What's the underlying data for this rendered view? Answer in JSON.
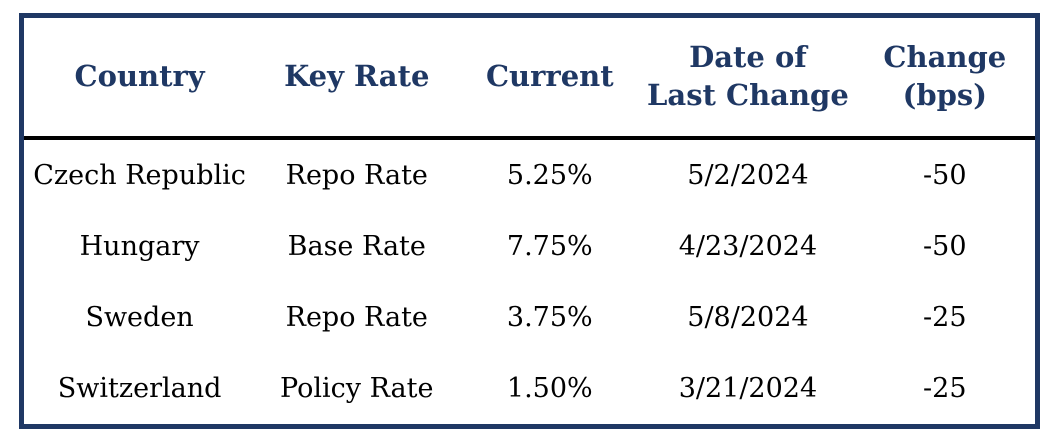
{
  "colors": {
    "table_border": "#1f3864",
    "header_text": "#1f3864",
    "header_rule": "#000000",
    "body_text": "#000000",
    "background": "#ffffff"
  },
  "table": {
    "headers": [
      {
        "lines": [
          "Country",
          ""
        ]
      },
      {
        "lines": [
          "Key Rate",
          ""
        ]
      },
      {
        "lines": [
          "Current",
          ""
        ]
      },
      {
        "lines": [
          "Date of",
          "Last Change"
        ]
      },
      {
        "lines": [
          "Change",
          "(bps)"
        ]
      }
    ],
    "rows": [
      {
        "country": "Czech Republic",
        "key_rate": "Repo Rate",
        "current": "5.25%",
        "date_of_last_change": "5/2/2024",
        "change_bps": "-50"
      },
      {
        "country": "Hungary",
        "key_rate": "Base Rate",
        "current": "7.75%",
        "date_of_last_change": "4/23/2024",
        "change_bps": "-50"
      },
      {
        "country": "Sweden",
        "key_rate": "Repo Rate",
        "current": "3.75%",
        "date_of_last_change": "5/8/2024",
        "change_bps": "-25"
      },
      {
        "country": "Switzerland",
        "key_rate": "Policy Rate",
        "current": "1.50%",
        "date_of_last_change": "3/21/2024",
        "change_bps": "-25"
      }
    ]
  },
  "chart_data": {
    "type": "table",
    "title": "",
    "columns": [
      "Country",
      "Key Rate",
      "Current",
      "Date of Last Change",
      "Change (bps)"
    ],
    "rows": [
      [
        "Czech Republic",
        "Repo Rate",
        "5.25%",
        "5/2/2024",
        -50
      ],
      [
        "Hungary",
        "Base Rate",
        "7.75%",
        "4/23/2024",
        -50
      ],
      [
        "Sweden",
        "Repo Rate",
        "3.75%",
        "5/8/2024",
        -25
      ],
      [
        "Switzerland",
        "Policy Rate",
        "1.50%",
        "3/21/2024",
        -25
      ]
    ]
  }
}
